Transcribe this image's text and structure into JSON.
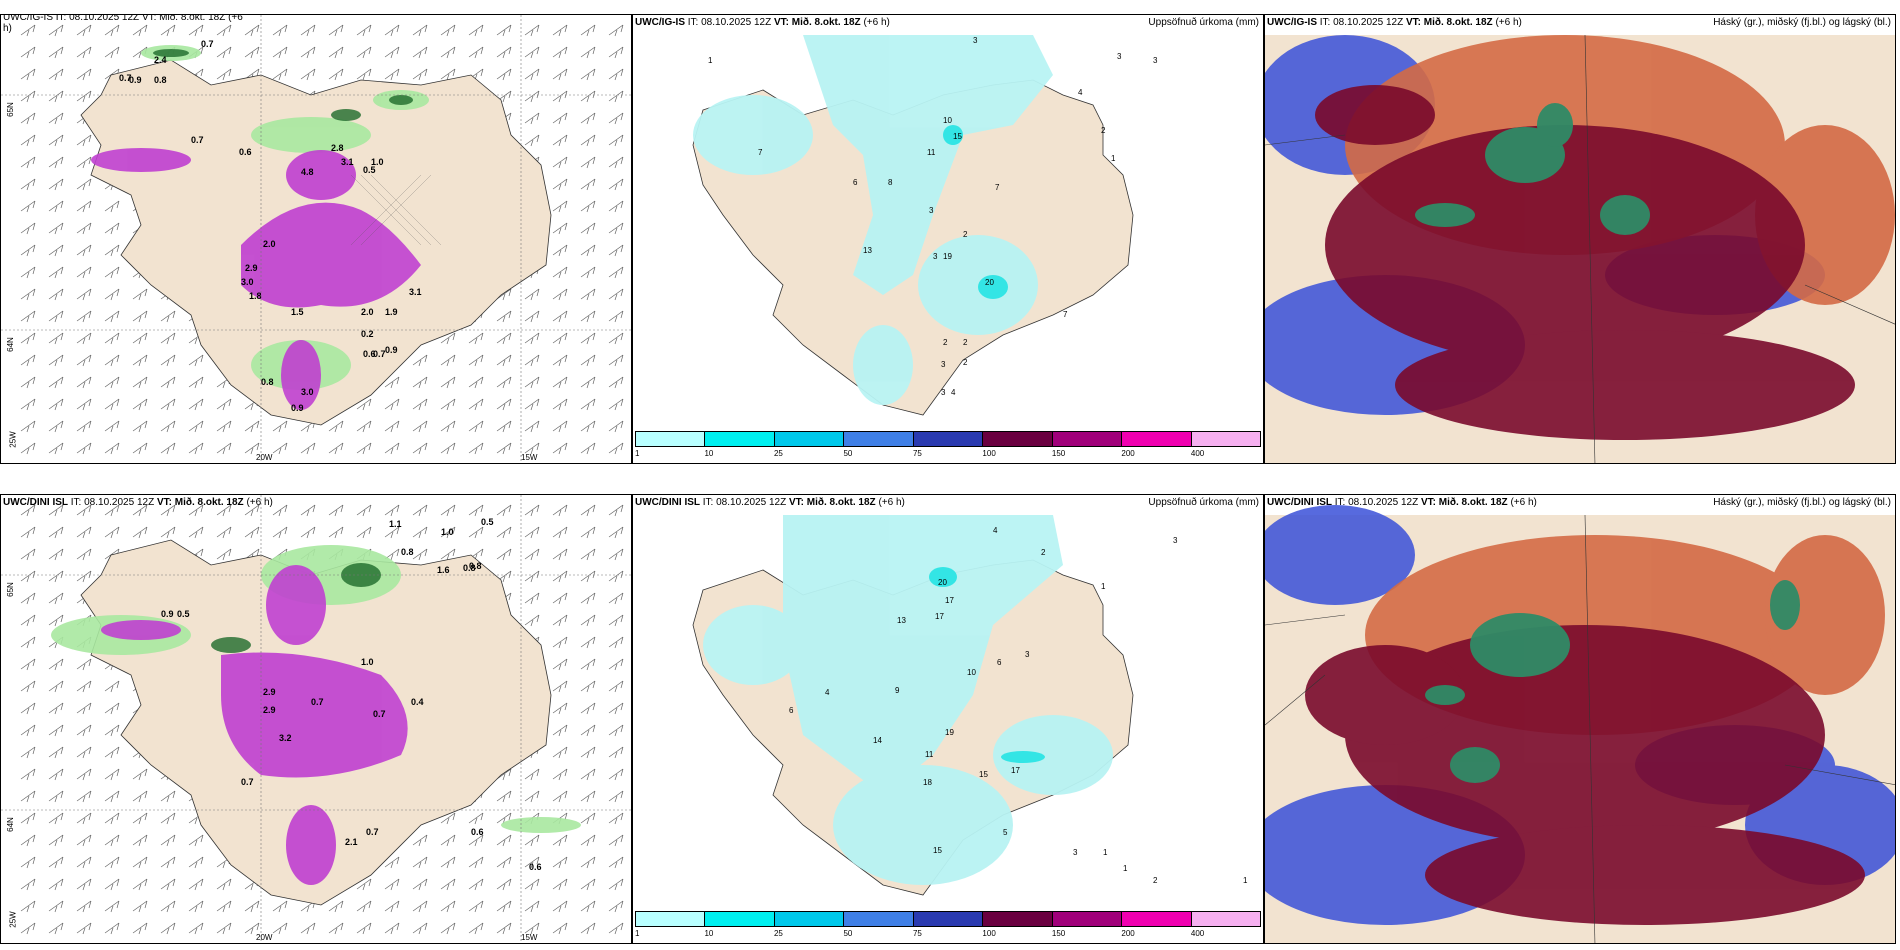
{
  "rows": [
    {
      "model": "UWC/IG-IS",
      "issue_time": "IT: 08.10.2025 12Z",
      "valid_label": "VT:",
      "valid_time": "Mið. 8.okt. 18Z",
      "lead": "(+6 h)",
      "wind_panel_title": "UWC/IG-IS IT: 08.10.2025 12Z VT: Mið. 8.okt. 18Z (+6",
      "wind_panel_title_cont": "h)",
      "wind_values": [
        "0.7",
        "2.4",
        "0.7",
        "0.9",
        "0.8",
        "0.7",
        "0.6",
        "1.0",
        "0.5",
        "2.8",
        "3.1",
        "4.8",
        "2.0",
        "3.0",
        "2.9",
        "1.8",
        "1.5",
        "2.0",
        "1.9",
        "3.1",
        "0.2",
        "0.9",
        "0.6",
        "0.7",
        "0.8",
        "3.0",
        "0.9"
      ],
      "precip_values": [
        "1",
        "3",
        "3",
        "4",
        "3",
        "2",
        "1",
        "10",
        "15",
        "11",
        "7",
        "3",
        "2",
        "3",
        "13",
        "19",
        "20",
        "7",
        "2",
        "2",
        "3",
        "2",
        "3",
        "4",
        "6",
        "8",
        "7"
      ]
    },
    {
      "model": "UWC/DINI ISL",
      "issue_time": "IT: 08.10.2025 12Z",
      "valid_label": "VT:",
      "valid_time": "Mið. 8.okt. 18Z",
      "lead": "(+6 h)",
      "wind_panel_title": "UWC/DINI ISL IT: 08.10.2025 12Z VT: Mið. 8.okt. 18Z (+6 h)",
      "wind_panel_title_cont": "",
      "wind_values": [
        "1.1",
        "1.0",
        "0.5",
        "0.8",
        "0.8",
        "1.6",
        "0.8",
        "0.9",
        "0.5",
        "2.9",
        "3.2",
        "0.4",
        "0.7",
        "0.7",
        "0.6",
        "2.1",
        "0.7",
        "0.6",
        "0.7",
        "1.0",
        "2.9"
      ],
      "precip_values": [
        "4",
        "3",
        "2",
        "1",
        "20",
        "17",
        "17",
        "13",
        "10",
        "6",
        "3",
        "19",
        "15",
        "17",
        "18",
        "14",
        "11",
        "15",
        "5",
        "3",
        "1",
        "1",
        "2",
        "1",
        "9",
        "4",
        "6"
      ]
    }
  ],
  "precip_right_label": "Uppsöfnuð úrkoma (mm)",
  "cloud_right_label": "Háský (gr.), miðský (fj.bl.) og lágský (bl.)",
  "colorbar": {
    "labels": [
      "1",
      "10",
      "25",
      "50",
      "75",
      "100",
      "150",
      "200",
      "400"
    ],
    "colors": [
      "#b8ffff",
      "#00f0f0",
      "#00c8ea",
      "#3f7fe6",
      "#2a3ab0",
      "#6a0040",
      "#a0007a",
      "#f000b0",
      "#f6b0f0"
    ]
  },
  "axis_labels": {
    "lat_top": "65N",
    "lat_bottom": "64N",
    "lon_left": "25W",
    "lon_mid": "20W",
    "lon_right": "15W"
  },
  "colors": {
    "land": "#f2e3d0",
    "precip_light": "#b8f3f3",
    "precip_mid": "#33e5e5",
    "magenta": "#c040d0",
    "green_dark": "#1e6a2a",
    "green_light": "#a8e8a0",
    "cloud_red": "#7a0a2c",
    "cloud_orange": "#d46a45",
    "cloud_blue": "#3a50d8",
    "cloud_green": "#2f8a66"
  }
}
